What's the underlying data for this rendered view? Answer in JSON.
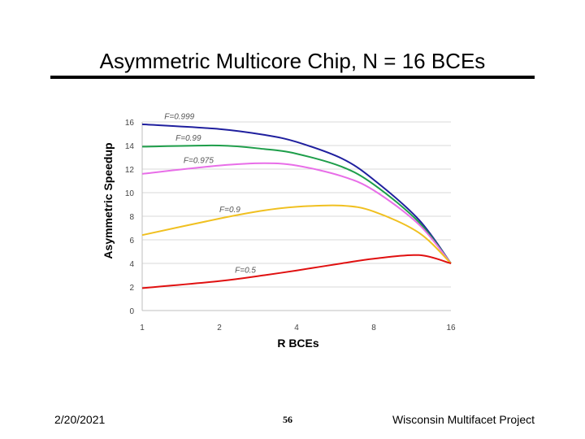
{
  "slide": {
    "title": "Asymmetric Multicore Chip, N = 16 BCEs",
    "footer_date": "2/20/2021",
    "page_number": "56",
    "footer_org": "Wisconsin Multifacet Project"
  },
  "chart_data": {
    "type": "line",
    "title": "",
    "xlabel": "R BCEs",
    "ylabel": "Asymmetric Speedup",
    "x_scale": "log2",
    "xlim": [
      1,
      16
    ],
    "ylim": [
      0,
      16
    ],
    "x_ticks": [
      1,
      2,
      4,
      8,
      16
    ],
    "y_ticks": [
      0,
      2,
      4,
      6,
      8,
      10,
      12,
      14,
      16
    ],
    "grid": "horizontal",
    "legend": "inline labels",
    "x": [
      1,
      2,
      3,
      4,
      6,
      8,
      12,
      16
    ],
    "series": [
      {
        "name": "F=0.999",
        "color": "#1f1f9e",
        "values": [
          15.8,
          15.4,
          14.9,
          14.3,
          12.9,
          11.1,
          7.7,
          4.0
        ]
      },
      {
        "name": "F=0.99",
        "color": "#1e9e4a",
        "values": [
          13.9,
          14.0,
          13.7,
          13.3,
          12.2,
          10.7,
          7.5,
          4.0
        ]
      },
      {
        "name": "F=0.975",
        "color": "#e86ee8",
        "values": [
          11.6,
          12.3,
          12.5,
          12.3,
          11.4,
          10.2,
          7.3,
          4.0
        ]
      },
      {
        "name": "F=0.9",
        "color": "#f0c020",
        "values": [
          6.4,
          7.8,
          8.5,
          8.8,
          8.9,
          8.4,
          6.6,
          4.0
        ]
      },
      {
        "name": "F=0.5",
        "color": "#e01010",
        "values": [
          1.9,
          2.5,
          3.0,
          3.4,
          4.0,
          4.4,
          4.7,
          4.0
        ]
      }
    ]
  }
}
